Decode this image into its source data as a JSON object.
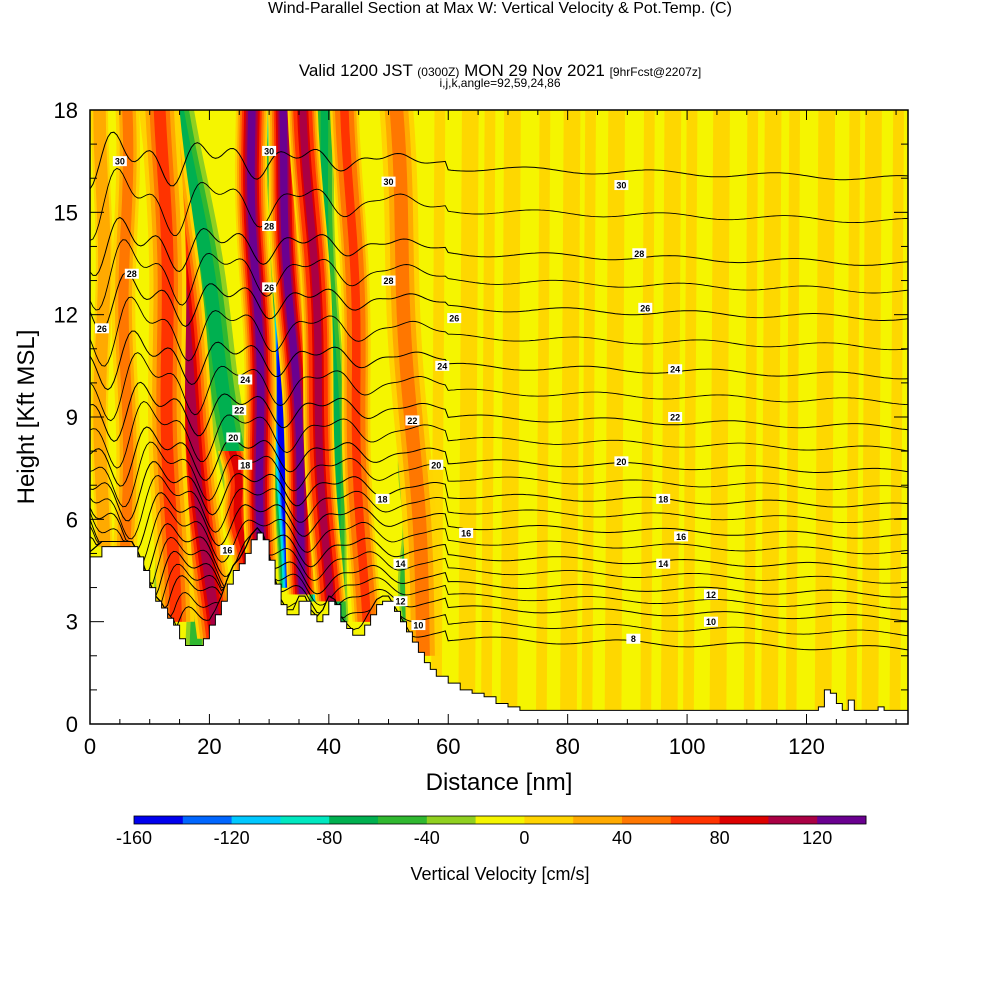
{
  "title": {
    "main": "Wind-Parallel Section at Max W: Vertical Velocity & Pot.Temp.",
    "copyright": "(C)",
    "valid_prefix": "Valid 1200 JST",
    "valid_zulu": "(0300Z)",
    "valid_date": "MON 29 Nov 2021",
    "forecast": "[9hrFcst@2207z]",
    "indices": "i,j,k,angle=92,59,24,86"
  },
  "colors": {
    "background_field": "#f5f500",
    "terrain": "#ffffff",
    "contour": "#000000",
    "colorbar": [
      "#0000ee",
      "#0066ff",
      "#00c8ff",
      "#00e8c0",
      "#00b050",
      "#30b830",
      "#90d020",
      "#f5f500",
      "#ffd400",
      "#ffaa00",
      "#ff7700",
      "#ff3300",
      "#dd0000",
      "#aa0044",
      "#6a0090"
    ]
  },
  "chart_data": {
    "type": "heatmap",
    "xlabel": "Distance [nm]",
    "ylabel": "Height [Kft MSL]",
    "xlim": [
      0,
      137
    ],
    "ylim": [
      0,
      18
    ],
    "x_ticks": [
      0,
      20,
      40,
      60,
      80,
      100,
      120
    ],
    "y_ticks": [
      0,
      3,
      6,
      9,
      12,
      15,
      18
    ],
    "grid": false,
    "colorbar": {
      "title": "Vertical Velocity [cm/s]",
      "placement": "bottom",
      "ticks": [
        -160,
        -120,
        -80,
        -40,
        0,
        40,
        80,
        120
      ],
      "min": -160,
      "max": 140,
      "step": 20
    },
    "terrain_profile": [
      [
        0,
        4.9
      ],
      [
        2,
        5.2
      ],
      [
        5,
        5.2
      ],
      [
        7,
        5.2
      ],
      [
        8,
        4.9
      ],
      [
        9,
        4.5
      ],
      [
        10,
        4.0
      ],
      [
        11,
        3.6
      ],
      [
        12,
        3.4
      ],
      [
        13,
        3.1
      ],
      [
        14,
        2.9
      ],
      [
        15,
        2.5
      ],
      [
        16,
        2.3
      ],
      [
        18,
        2.3
      ],
      [
        19,
        2.5
      ],
      [
        20,
        2.9
      ],
      [
        21,
        3.2
      ],
      [
        22,
        3.6
      ],
      [
        23,
        4.1
      ],
      [
        24,
        4.5
      ],
      [
        25,
        4.7
      ],
      [
        26,
        5.0
      ],
      [
        27,
        5.4
      ],
      [
        28,
        5.6
      ],
      [
        29,
        5.4
      ],
      [
        30,
        4.8
      ],
      [
        31,
        4.1
      ],
      [
        32,
        3.5
      ],
      [
        33,
        3.2
      ],
      [
        34,
        3.2
      ],
      [
        35,
        3.6
      ],
      [
        36,
        3.6
      ],
      [
        37,
        3.2
      ],
      [
        38,
        3.0
      ],
      [
        39,
        3.2
      ],
      [
        40,
        3.6
      ],
      [
        41,
        3.5
      ],
      [
        42,
        3.0
      ],
      [
        43,
        2.8
      ],
      [
        44,
        2.6
      ],
      [
        45,
        2.6
      ],
      [
        46,
        2.9
      ],
      [
        47,
        3.2
      ],
      [
        48,
        3.5
      ],
      [
        49,
        3.6
      ],
      [
        50,
        3.6
      ],
      [
        51,
        3.3
      ],
      [
        52,
        3.0
      ],
      [
        53,
        2.7
      ],
      [
        54,
        2.4
      ],
      [
        55,
        2.1
      ],
      [
        56,
        1.8
      ],
      [
        57,
        1.6
      ],
      [
        58,
        1.4
      ],
      [
        60,
        1.2
      ],
      [
        62,
        1.0
      ],
      [
        64,
        0.9
      ],
      [
        66,
        0.8
      ],
      [
        68,
        0.6
      ],
      [
        70,
        0.5
      ],
      [
        72,
        0.4
      ],
      [
        80,
        0.4
      ],
      [
        100,
        0.4
      ],
      [
        120,
        0.4
      ],
      [
        122,
        0.5
      ],
      [
        123,
        1.0
      ],
      [
        124,
        0.9
      ],
      [
        125,
        0.6
      ],
      [
        126,
        0.4
      ],
      [
        127,
        0.7
      ],
      [
        128,
        0.4
      ],
      [
        130,
        0.4
      ],
      [
        132,
        0.5
      ],
      [
        133,
        0.4
      ],
      [
        137,
        0.4
      ]
    ],
    "updraft_bands": [
      {
        "x": 21,
        "z0": 2.5,
        "z1": 18,
        "lean": -9,
        "width": 2.2,
        "w": 100
      },
      {
        "x": 14,
        "z0": 3.0,
        "z1": 18,
        "lean": -2,
        "width": 2.0,
        "w": 60
      },
      {
        "x": 26,
        "z0": 4.5,
        "z1": 8,
        "lean": -2,
        "width": 1.5,
        "w": 90
      },
      {
        "x": 29,
        "z0": 4.8,
        "z1": 18,
        "lean": -2,
        "width": 1.7,
        "w": 120
      },
      {
        "x": 36,
        "z0": 3.8,
        "z1": 18,
        "lean": -4,
        "width": 1.6,
        "w": 120
      },
      {
        "x": 40,
        "z0": 3.6,
        "z1": 18,
        "lean": -4,
        "width": 1.6,
        "w": 110
      },
      {
        "x": 46,
        "z0": 3.0,
        "z1": 18,
        "lean": -3,
        "width": 1.5,
        "w": 70
      },
      {
        "x": 56,
        "z0": 2.0,
        "z1": 18,
        "lean": -5,
        "width": 1.8,
        "w": 45
      },
      {
        "x": 6,
        "z0": 5.2,
        "z1": 18,
        "lean": 0,
        "width": 1.2,
        "w": 40
      },
      {
        "x": 2,
        "z0": 5.2,
        "z1": 18,
        "lean": 0,
        "width": 0.8,
        "w": 30
      }
    ],
    "downdraft_bands": [
      {
        "x": 27,
        "z0": 5.0,
        "z1": 18,
        "lean": -12,
        "width": 2.4,
        "w": -60
      },
      {
        "x": 33,
        "z0": 4.0,
        "z1": 18,
        "lean": -2,
        "width": 1.2,
        "w": -140
      },
      {
        "x": 38,
        "z0": 3.6,
        "z1": 18,
        "lean": -2,
        "width": 1.0,
        "w": -100
      },
      {
        "x": 42,
        "z0": 3.0,
        "z1": 18,
        "lean": -3,
        "width": 1.2,
        "w": -70
      },
      {
        "x": 18,
        "z0": 2.3,
        "z1": 8,
        "lean": -2,
        "width": 1.5,
        "w": -45
      },
      {
        "x": 12,
        "z0": 4.0,
        "z1": 18,
        "lean": 0,
        "width": 0.8,
        "w": -45
      },
      {
        "x": 53,
        "z0": 3.0,
        "z1": 8,
        "lean": 0,
        "width": 0.8,
        "w": -40
      }
    ],
    "theta_contours": [
      {
        "value": 8,
        "z": 2.5
      },
      {
        "value": 10,
        "z": 3.4
      },
      {
        "value": 12,
        "z": 4.1
      },
      {
        "value": 14,
        "z": 4.9
      },
      {
        "value": 16,
        "z": 5.8
      },
      {
        "value": 18,
        "z": 6.7
      },
      {
        "value": 20,
        "z": 7.7
      },
      {
        "value": 22,
        "z": 9.0
      },
      {
        "value": 24,
        "z": 10.5
      },
      {
        "value": 26,
        "z": 12.2
      },
      {
        "value": 28,
        "z": 13.8
      },
      {
        "value": 30,
        "z": 16.3
      }
    ],
    "contour_labels": [
      {
        "text": "30",
        "x": 5,
        "z": 16.5
      },
      {
        "text": "30",
        "x": 30,
        "z": 16.8
      },
      {
        "text": "30",
        "x": 50,
        "z": 15.9
      },
      {
        "text": "30",
        "x": 89,
        "z": 15.8
      },
      {
        "text": "28",
        "x": 7,
        "z": 13.2
      },
      {
        "text": "28",
        "x": 30,
        "z": 14.6
      },
      {
        "text": "28",
        "x": 50,
        "z": 13.0
      },
      {
        "text": "28",
        "x": 92,
        "z": 13.8
      },
      {
        "text": "26",
        "x": 2,
        "z": 11.6
      },
      {
        "text": "26",
        "x": 30,
        "z": 12.8
      },
      {
        "text": "26",
        "x": 61,
        "z": 11.9
      },
      {
        "text": "26",
        "x": 93,
        "z": 12.2
      },
      {
        "text": "24",
        "x": 26,
        "z": 10.1
      },
      {
        "text": "24",
        "x": 59,
        "z": 10.5
      },
      {
        "text": "24",
        "x": 98,
        "z": 10.4
      },
      {
        "text": "22",
        "x": 25,
        "z": 9.2
      },
      {
        "text": "22",
        "x": 54,
        "z": 8.9
      },
      {
        "text": "22",
        "x": 98,
        "z": 9.0
      },
      {
        "text": "20",
        "x": 24,
        "z": 8.4
      },
      {
        "text": "20",
        "x": 58,
        "z": 7.6
      },
      {
        "text": "20",
        "x": 89,
        "z": 7.7
      },
      {
        "text": "18",
        "x": 26,
        "z": 7.6
      },
      {
        "text": "18",
        "x": 49,
        "z": 6.6
      },
      {
        "text": "18",
        "x": 96,
        "z": 6.6
      },
      {
        "text": "16",
        "x": 23,
        "z": 5.1
      },
      {
        "text": "16",
        "x": 63,
        "z": 5.6
      },
      {
        "text": "16",
        "x": 99,
        "z": 5.5
      },
      {
        "text": "14",
        "x": 52,
        "z": 4.7
      },
      {
        "text": "14",
        "x": 96,
        "z": 4.7
      },
      {
        "text": "12",
        "x": 52,
        "z": 3.6
      },
      {
        "text": "12",
        "x": 104,
        "z": 3.8
      },
      {
        "text": "10",
        "x": 55,
        "z": 2.9
      },
      {
        "text": "10",
        "x": 104,
        "z": 3.0
      },
      {
        "text": "8",
        "x": 91,
        "z": 2.5
      }
    ]
  }
}
